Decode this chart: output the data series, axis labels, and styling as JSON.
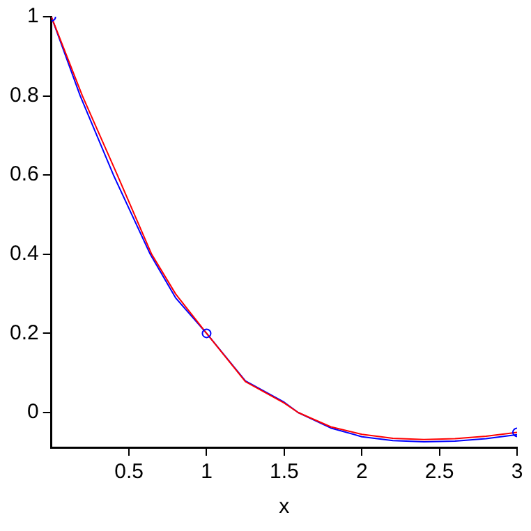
{
  "chart_data": {
    "type": "line",
    "xlabel": "x",
    "xlim": [
      0,
      3
    ],
    "ylim": [
      -0.088,
      1
    ],
    "xticks": [
      0.5,
      1,
      1.5,
      2,
      2.5,
      3
    ],
    "yticks": [
      0,
      0.2,
      0.4,
      0.6,
      0.8,
      1
    ],
    "grid": false,
    "legend": false,
    "marker": "none",
    "series": [
      {
        "color": "#0000ff",
        "x": [
          0,
          0.186,
          0.4,
          0.637,
          0.8,
          1,
          1.25,
          1.5,
          1.59,
          1.8,
          2,
          2.2,
          2.4,
          2.6,
          2.8,
          3
        ],
        "values": [
          1,
          0.8,
          0.6,
          0.4,
          0.29,
          0.2,
          0.08,
          0.026,
          0,
          -0.039,
          -0.061,
          -0.071,
          -0.074,
          -0.072,
          -0.066,
          -0.056
        ]
      },
      {
        "color": "#ff0000",
        "x": [
          0,
          0.2,
          0.425,
          0.646,
          0.8,
          1,
          1.25,
          1.5,
          1.59,
          1.8,
          2,
          2.2,
          2.4,
          2.6,
          2.8,
          3
        ],
        "values": [
          1,
          0.8,
          0.6,
          0.4,
          0.3,
          0.2,
          0.078,
          0.024,
          0,
          -0.036,
          -0.055,
          -0.065,
          -0.068,
          -0.066,
          -0.06,
          -0.05
        ]
      },
      {
        "type": "scatter",
        "marker": "circle",
        "color": "#0000ff",
        "x": [
          0,
          1,
          3
        ],
        "values": [
          1,
          0.2,
          -0.05
        ]
      }
    ]
  }
}
